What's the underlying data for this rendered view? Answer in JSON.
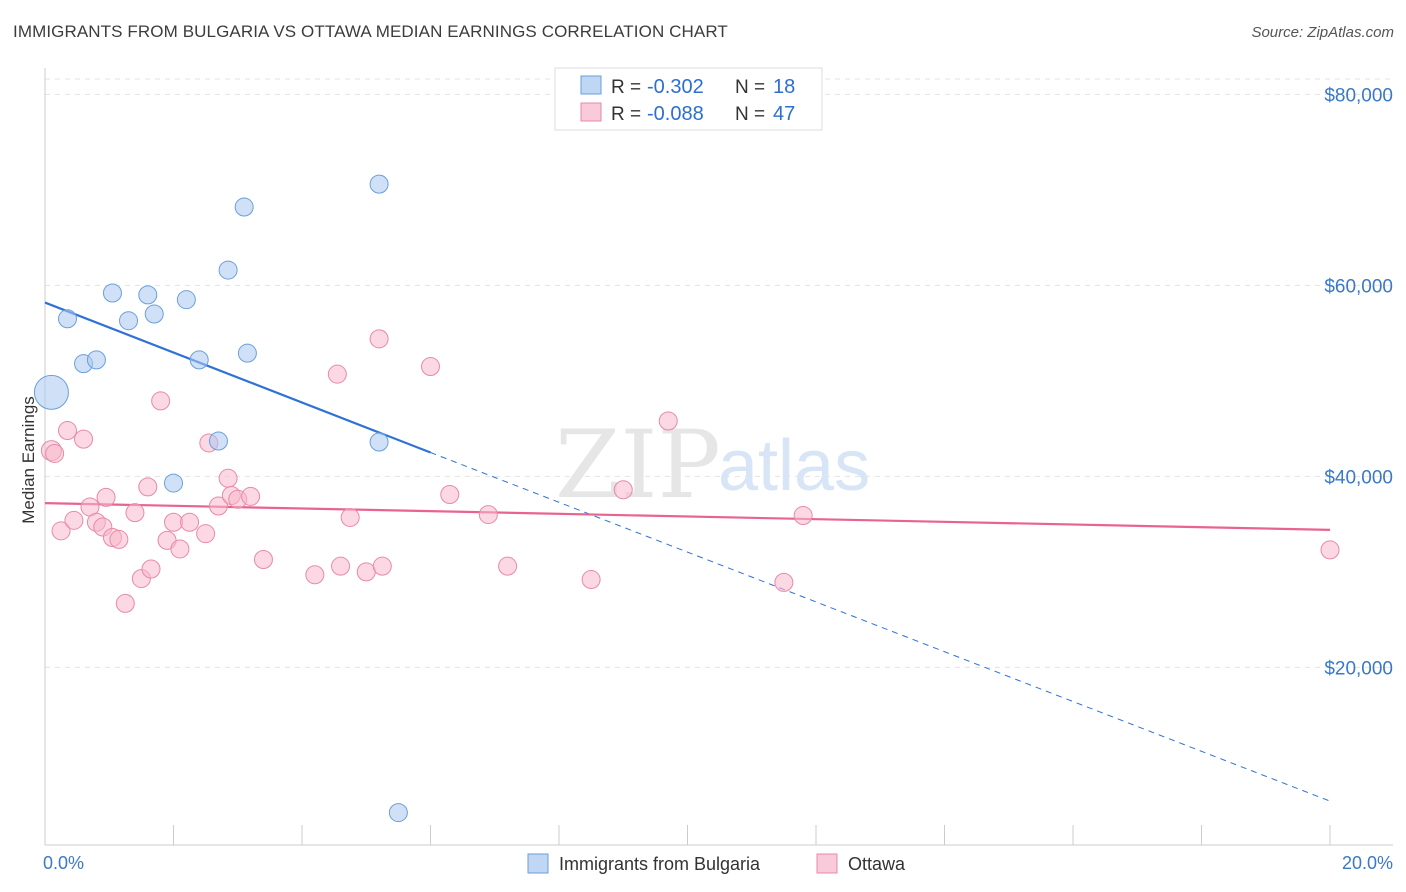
{
  "title": "IMMIGRANTS FROM BULGARIA VS OTTAWA MEDIAN EARNINGS CORRELATION CHART",
  "source": "Source: ZipAtlas.com",
  "watermark": {
    "zip": "ZIP",
    "atlas": "atlas"
  },
  "legend_top": [
    {
      "r_label": "R =",
      "r_value": "-0.302",
      "n_label": "N =",
      "n_value": "18",
      "color": "#a9c8f0"
    },
    {
      "r_label": "R =",
      "r_value": "-0.088",
      "n_label": "N =",
      "n_value": "47",
      "color": "#f7b8cc"
    }
  ],
  "legend_bottom": [
    {
      "label": "Immigrants from Bulgaria",
      "color": "#a9c8f0"
    },
    {
      "label": "Ottawa",
      "color": "#f7b8cc"
    }
  ],
  "chart_data": {
    "type": "scatter",
    "ylabel": "Median Earnings",
    "xlim": [
      0,
      20
    ],
    "ylim": [
      3500,
      81500
    ],
    "x_tick_labels": {
      "left": "0.0%",
      "right": "20.0%"
    },
    "y_ticks": [
      {
        "value": 20000,
        "label": "$20,000"
      },
      {
        "value": 40000,
        "label": "$40,000"
      },
      {
        "value": 60000,
        "label": "$60,000"
      },
      {
        "value": 80000,
        "label": "$80,000"
      }
    ],
    "grid": true,
    "series": [
      {
        "name": "Immigrants from Bulgaria",
        "color": "#a9c8f0",
        "stroke": "#6a9fdc",
        "points": [
          [
            0.1,
            48800,
            17
          ],
          [
            0.35,
            56500,
            9
          ],
          [
            0.6,
            51800,
            9
          ],
          [
            0.8,
            52200,
            9
          ],
          [
            1.05,
            59200,
            9
          ],
          [
            1.3,
            56300,
            9
          ],
          [
            1.6,
            59000,
            9
          ],
          [
            1.7,
            57000,
            9
          ],
          [
            2.2,
            58500,
            9
          ],
          [
            2.4,
            52200,
            9
          ],
          [
            2.0,
            39300,
            9
          ],
          [
            2.7,
            43700,
            9
          ],
          [
            2.85,
            61600,
            9
          ],
          [
            3.1,
            68200,
            9
          ],
          [
            3.15,
            52900,
            9
          ],
          [
            5.2,
            70600,
            9
          ],
          [
            5.2,
            43600,
            9
          ],
          [
            5.5,
            4800,
            9
          ]
        ],
        "trend": {
          "x0": 0,
          "y0": 58200,
          "x1": 6.0,
          "y1": 42500,
          "dash_x1": 20.0,
          "dash_y1": 6000
        }
      },
      {
        "name": "Ottawa",
        "color": "#f7b8cc",
        "stroke": "#e88aa8",
        "points": [
          [
            0.1,
            42700,
            10
          ],
          [
            0.15,
            42400,
            9
          ],
          [
            0.25,
            34300,
            9
          ],
          [
            0.35,
            44800,
            9
          ],
          [
            0.45,
            35400,
            9
          ],
          [
            0.6,
            43900,
            9
          ],
          [
            0.7,
            36800,
            9
          ],
          [
            0.8,
            35200,
            9
          ],
          [
            0.9,
            34700,
            9
          ],
          [
            0.95,
            37800,
            9
          ],
          [
            1.05,
            33600,
            9
          ],
          [
            1.15,
            33400,
            9
          ],
          [
            1.25,
            26700,
            9
          ],
          [
            1.4,
            36200,
            9
          ],
          [
            1.5,
            29300,
            9
          ],
          [
            1.6,
            38900,
            9
          ],
          [
            1.65,
            30300,
            9
          ],
          [
            1.8,
            47900,
            9
          ],
          [
            1.9,
            33300,
            9
          ],
          [
            2.0,
            35200,
            9
          ],
          [
            2.1,
            32400,
            9
          ],
          [
            2.25,
            35200,
            9
          ],
          [
            2.5,
            34000,
            9
          ],
          [
            2.55,
            43500,
            9
          ],
          [
            2.7,
            36900,
            9
          ],
          [
            2.85,
            39800,
            9
          ],
          [
            2.9,
            38000,
            9
          ],
          [
            3.0,
            37600,
            9
          ],
          [
            3.2,
            37900,
            9
          ],
          [
            3.4,
            31300,
            9
          ],
          [
            4.2,
            29700,
            9
          ],
          [
            4.55,
            50700,
            9
          ],
          [
            4.6,
            30600,
            9
          ],
          [
            4.75,
            35700,
            9
          ],
          [
            5.0,
            30000,
            9
          ],
          [
            5.25,
            30600,
            9
          ],
          [
            5.2,
            54400,
            9
          ],
          [
            6.0,
            51500,
            9
          ],
          [
            6.3,
            38100,
            9
          ],
          [
            6.9,
            36000,
            9
          ],
          [
            7.2,
            30600,
            9
          ],
          [
            8.5,
            29200,
            9
          ],
          [
            9.0,
            38600,
            9
          ],
          [
            9.7,
            45800,
            9
          ],
          [
            11.5,
            28900,
            9
          ],
          [
            11.8,
            35900,
            9
          ],
          [
            20.0,
            32300,
            9
          ]
        ],
        "trend": {
          "x0": 0,
          "y0": 37200,
          "x1": 20.0,
          "y1": 34400
        }
      }
    ]
  }
}
